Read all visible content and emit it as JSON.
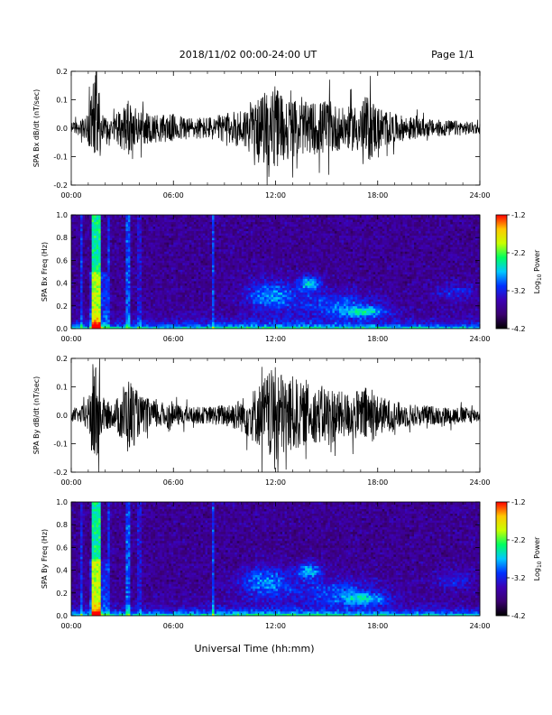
{
  "header": {
    "title": "2018/11/02  00:00-24:00 UT",
    "page": "Page 1/1"
  },
  "xaxis_label": "Universal Time (hh:mm)",
  "colors": {
    "trace": "#000000",
    "colorbar": [
      "#000000",
      "#3a0070",
      "#3c00b4",
      "#0030ff",
      "#00c8ff",
      "#00ff60",
      "#c8ff00",
      "#ffc800",
      "#ff0000"
    ]
  },
  "chart_data": [
    {
      "type": "line",
      "title": "",
      "ylabel": "SPA Bx dB/dt (nT/sec)",
      "xlim": [
        0,
        24
      ],
      "ylim": [
        -0.2,
        0.2
      ],
      "yticks": [
        0.2,
        0.1,
        0.0,
        -0.1,
        -0.2
      ],
      "ytick_labels": [
        "0.2",
        "0.1",
        "0.0",
        "-0.1",
        "-0.2"
      ],
      "xticks": [
        0,
        6,
        12,
        18,
        24
      ],
      "xtick_labels": [
        "00:00",
        "06:00",
        "12:00",
        "18:00",
        "24:00"
      ],
      "series": [
        {
          "hours": [
            0,
            0.5,
            1.0,
            1.3,
            1.5,
            1.8,
            2.5,
            3.3,
            3.6,
            4.0,
            5.0,
            6.0,
            7.0,
            8.0,
            9.0,
            10.0,
            11.0,
            11.5,
            12.0,
            12.5,
            13.0,
            14.0,
            15.0,
            16.0,
            17.0,
            17.5,
            18.0,
            19.0,
            20.0,
            21.0,
            22.0,
            23.0,
            24.0
          ],
          "envelope": [
            0.02,
            0.025,
            0.05,
            0.2,
            0.2,
            0.05,
            0.04,
            0.1,
            0.08,
            0.06,
            0.05,
            0.05,
            0.04,
            0.04,
            0.05,
            0.07,
            0.1,
            0.14,
            0.15,
            0.12,
            0.1,
            0.09,
            0.1,
            0.07,
            0.09,
            0.12,
            0.08,
            0.05,
            0.04,
            0.03,
            0.03,
            0.025,
            0.02
          ]
        }
      ]
    },
    {
      "type": "heatmap",
      "title": "",
      "ylabel": "SPA Bx Freq (Hz)",
      "xlim": [
        0,
        24
      ],
      "ylim": [
        0,
        1.0
      ],
      "yticks": [
        1.0,
        0.8,
        0.6,
        0.4,
        0.2,
        0.0
      ],
      "ytick_labels": [
        "1.0",
        "0.8",
        "0.6",
        "0.4",
        "0.2",
        "0.0"
      ],
      "xticks": [
        0,
        6,
        12,
        18,
        24
      ],
      "xtick_labels": [
        "00:00",
        "06:00",
        "12:00",
        "18:00",
        "24:00"
      ],
      "colorbar_label": "Log10 Power",
      "colorbar_range": [
        -4.2,
        -1.2
      ],
      "colorbar_ticks": [
        -1.2,
        -2.2,
        -3.2,
        -4.2
      ],
      "colorbar_tick_labels": [
        "-1.2",
        "-2.2",
        "-3.2",
        "-4.2"
      ]
    },
    {
      "type": "line",
      "title": "",
      "ylabel": "SPA By dB/dt (nT/sec)",
      "xlim": [
        0,
        24
      ],
      "ylim": [
        -0.2,
        0.2
      ],
      "yticks": [
        0.2,
        0.1,
        0.0,
        -0.1,
        -0.2
      ],
      "ytick_labels": [
        "0.2",
        "0.1",
        "0.0",
        "-0.1",
        "-0.2"
      ],
      "xticks": [
        0,
        6,
        12,
        18,
        24
      ],
      "xtick_labels": [
        "00:00",
        "06:00",
        "12:00",
        "18:00",
        "24:00"
      ],
      "series": [
        {
          "hours": [
            0,
            0.5,
            1.0,
            1.3,
            1.5,
            1.8,
            2.5,
            3.3,
            3.6,
            4.0,
            5.0,
            6.0,
            7.0,
            8.0,
            9.0,
            10.0,
            11.0,
            11.5,
            12.0,
            12.5,
            13.0,
            14.0,
            15.0,
            16.0,
            17.0,
            17.5,
            18.0,
            19.0,
            20.0,
            21.0,
            22.0,
            23.0,
            24.0
          ],
          "envelope": [
            0.02,
            0.025,
            0.06,
            0.2,
            0.2,
            0.06,
            0.04,
            0.14,
            0.12,
            0.07,
            0.05,
            0.04,
            0.03,
            0.03,
            0.04,
            0.06,
            0.11,
            0.15,
            0.17,
            0.15,
            0.14,
            0.09,
            0.11,
            0.08,
            0.09,
            0.11,
            0.07,
            0.05,
            0.04,
            0.035,
            0.03,
            0.03,
            0.025
          ]
        }
      ]
    },
    {
      "type": "heatmap",
      "title": "",
      "ylabel": "SPA By Freq (Hz)",
      "xlim": [
        0,
        24
      ],
      "ylim": [
        0,
        1.0
      ],
      "yticks": [
        1.0,
        0.8,
        0.6,
        0.4,
        0.2,
        0.0
      ],
      "ytick_labels": [
        "1.0",
        "0.8",
        "0.6",
        "0.4",
        "0.2",
        "0.0"
      ],
      "xticks": [
        0,
        6,
        12,
        18,
        24
      ],
      "xtick_labels": [
        "00:00",
        "06:00",
        "12:00",
        "18:00",
        "24:00"
      ],
      "colorbar_label": "Log10 Power",
      "colorbar_range": [
        -4.2,
        -1.2
      ],
      "colorbar_ticks": [
        -1.2,
        -2.2,
        -3.2,
        -4.2
      ],
      "colorbar_tick_labels": [
        "-1.2",
        "-2.2",
        "-3.2",
        "-4.2"
      ]
    }
  ]
}
